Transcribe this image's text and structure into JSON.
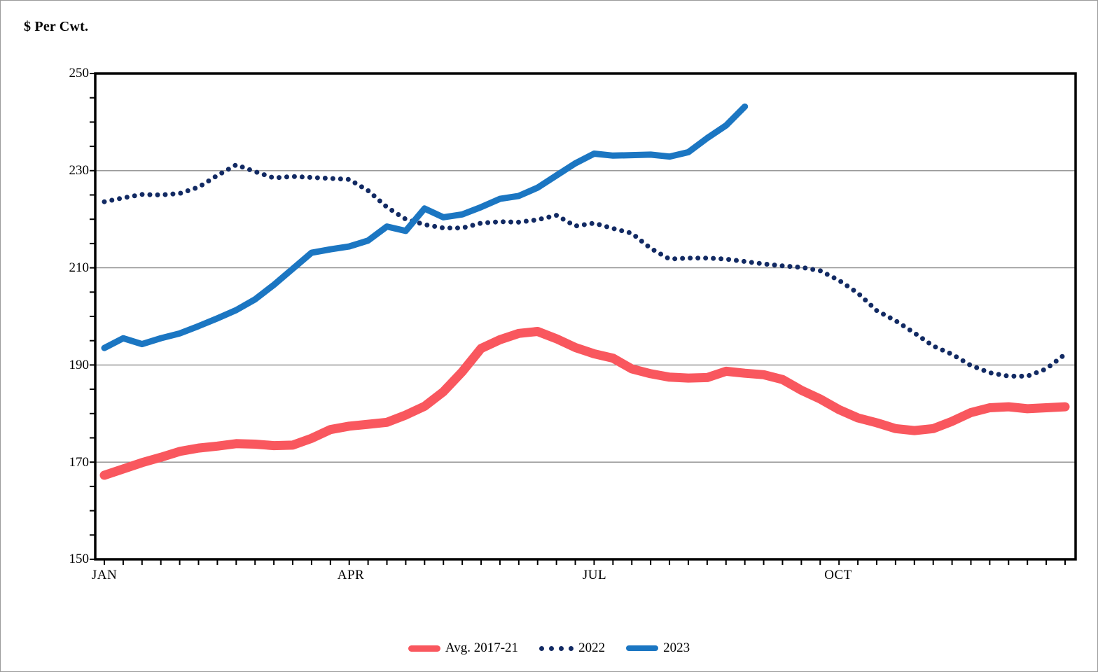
{
  "title": "$ Per Cwt.",
  "chart_data": {
    "type": "line",
    "title": "$ Per Cwt.",
    "ylabel": "$ Per Cwt.",
    "xlabel": "",
    "x_unit": "week",
    "weeks_per_year": 52,
    "ylim": [
      150,
      250
    ],
    "ytick_labels": [
      "150",
      "170",
      "190",
      "210",
      "230",
      "250"
    ],
    "ytick_values": [
      150,
      170,
      190,
      210,
      230,
      250
    ],
    "gridline_values": [
      170,
      190,
      210,
      230
    ],
    "grid": "horizontal-only",
    "legend_position": "bottom-center",
    "xtick_labels": [
      "JAN",
      "APR",
      "JUL",
      "OCT"
    ],
    "xtick_week_index": [
      1,
      14,
      27,
      40
    ],
    "axis_color": "#000000",
    "gridline_color": "#8c8c8c",
    "series": [
      {
        "name": "Avg. 2017-21",
        "style": "thick-solid",
        "color": "#F9575E",
        "start_week": 1,
        "values": [
          167.3,
          168.6,
          169.9,
          171.0,
          172.2,
          172.9,
          173.3,
          173.8,
          173.7,
          173.4,
          173.5,
          174.9,
          176.7,
          177.4,
          177.8,
          178.2,
          179.7,
          181.5,
          184.5,
          188.6,
          193.4,
          195.2,
          196.5,
          196.9,
          195.4,
          193.6,
          192.3,
          191.4,
          189.2,
          188.2,
          187.5,
          187.3,
          187.4,
          188.7,
          188.3,
          188.0,
          187.0,
          184.8,
          183.0,
          180.8,
          179.1,
          178.1,
          176.9,
          176.5,
          176.9,
          178.4,
          180.2,
          181.2,
          181.4,
          181.0,
          181.2,
          181.4
        ]
      },
      {
        "name": "2022",
        "style": "dotted",
        "color": "#122A63",
        "start_week": 1,
        "values": [
          223.6,
          224.4,
          225.1,
          225.0,
          225.3,
          226.6,
          229.0,
          231.2,
          229.8,
          228.5,
          228.8,
          228.6,
          228.4,
          228.2,
          225.9,
          222.5,
          220.0,
          218.9,
          218.2,
          218.2,
          219.2,
          219.5,
          219.4,
          219.9,
          220.8,
          218.6,
          219.2,
          218.1,
          217.1,
          214.0,
          211.8,
          212.0,
          212.0,
          211.8,
          211.3,
          210.8,
          210.4,
          210.1,
          209.4,
          207.4,
          204.8,
          201.2,
          199.1,
          196.6,
          193.9,
          192.2,
          189.9,
          188.4,
          187.7,
          187.7,
          189.2,
          192.2
        ]
      },
      {
        "name": "2023",
        "style": "solid",
        "color": "#1B76C2",
        "start_week": 1,
        "values": [
          193.5,
          195.5,
          194.3,
          195.5,
          196.5,
          198.0,
          199.6,
          201.3,
          203.5,
          206.5,
          209.8,
          213.1,
          213.8,
          214.4,
          215.6,
          218.5,
          217.6,
          222.2,
          220.4,
          221.0,
          222.5,
          224.2,
          224.8,
          226.5,
          229.0,
          231.5,
          233.5,
          233.1,
          233.2,
          233.3,
          232.9,
          233.8,
          236.7,
          239.3,
          243.2
        ]
      }
    ]
  },
  "legend": {
    "items": [
      {
        "label": "Avg. 2017-21"
      },
      {
        "label": "2022"
      },
      {
        "label": "2023"
      }
    ]
  }
}
